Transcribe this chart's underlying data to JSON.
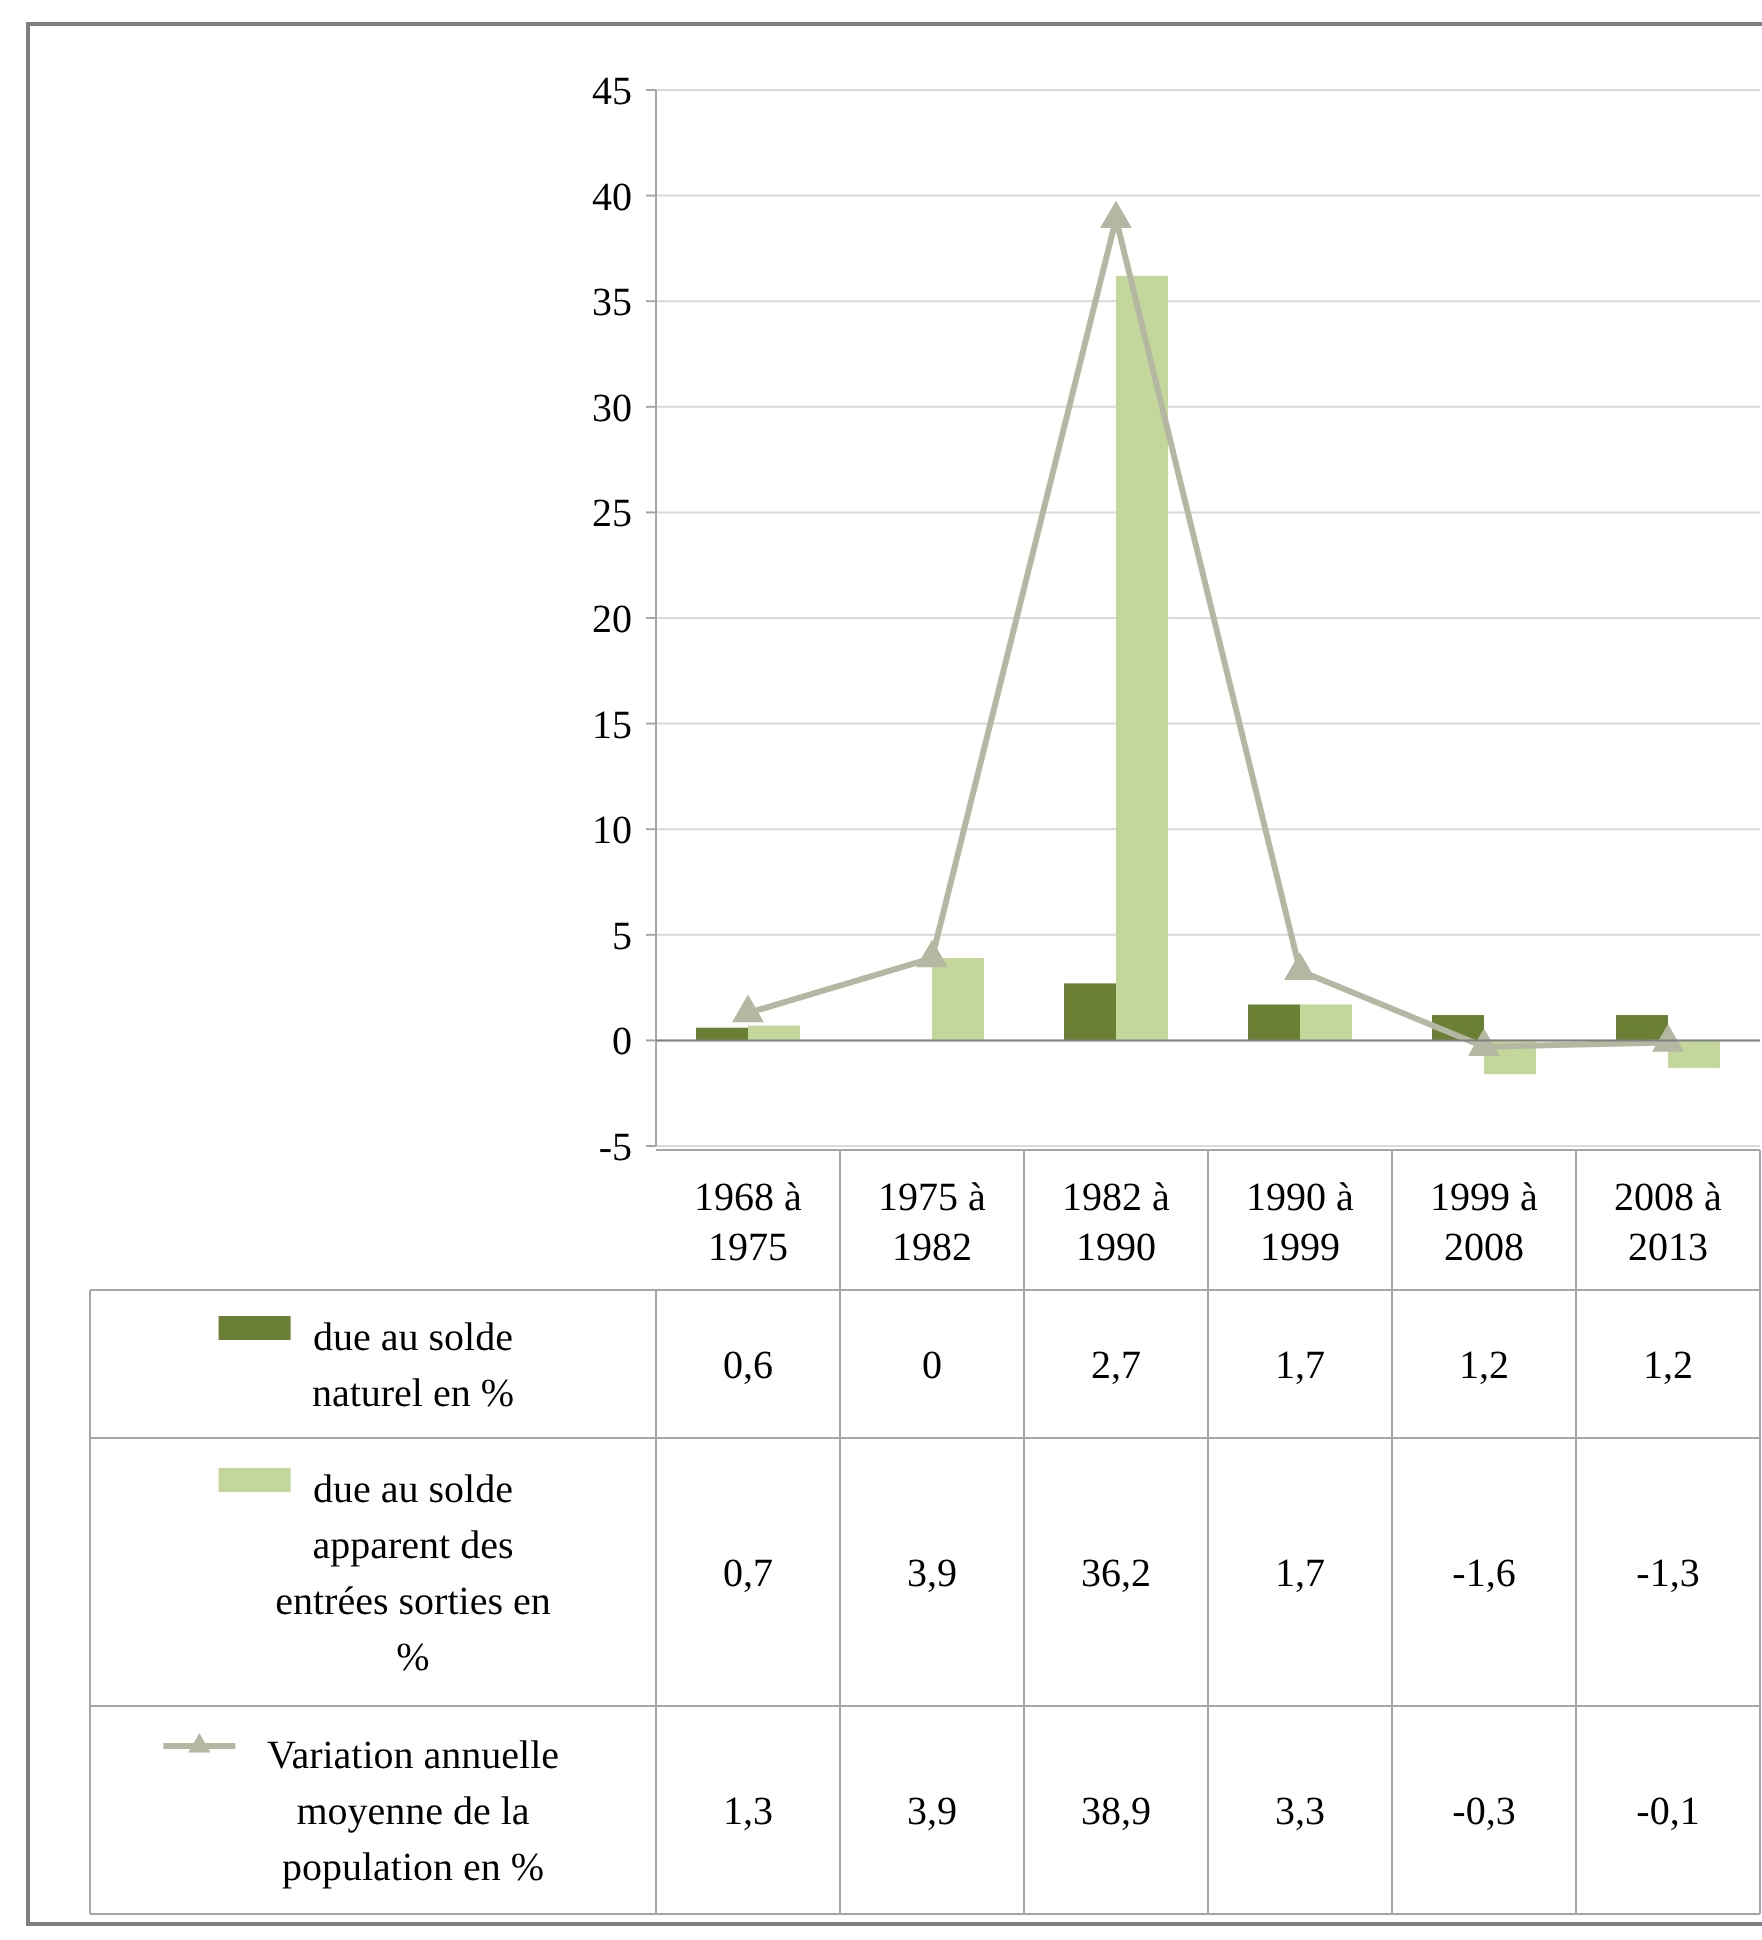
{
  "chart_data": {
    "type": "bar",
    "categories": [
      "1968 à 1975",
      "1975 à 1982",
      "1982 à 1990",
      "1990 à 1999",
      "1999 à 2008",
      "2008 à 2013"
    ],
    "series": [
      {
        "name": "due au solde naturel en %",
        "color": "#6b7f35",
        "values": [
          0.6,
          0,
          2.7,
          1.7,
          1.2,
          1.2
        ],
        "value_labels": [
          "0,6",
          "0",
          "2,7",
          "1,7",
          "1,2",
          "1,2"
        ]
      },
      {
        "name": "due au solde apparent des entrées sorties en %",
        "color": "#c4d79b",
        "values": [
          0.7,
          3.9,
          36.2,
          1.7,
          -1.6,
          -1.3
        ],
        "value_labels": [
          "0,7",
          "3,9",
          "36,2",
          "1,7",
          "-1,6",
          "-1,3"
        ]
      },
      {
        "name": "Variation annuelle moyenne de la population en %",
        "type": "line",
        "color": "#b4b8a2",
        "marker": "triangle",
        "values": [
          1.3,
          3.9,
          38.9,
          3.3,
          -0.3,
          -0.1
        ],
        "value_labels": [
          "1,3",
          "3,9",
          "38,9",
          "3,3",
          "-0,3",
          "-0,1"
        ]
      }
    ],
    "ylim": [
      -5,
      45
    ],
    "yticks": [
      -5,
      0,
      5,
      10,
      15,
      20,
      25,
      30,
      35,
      40,
      45
    ],
    "grid": "y",
    "legend": "bottom left"
  }
}
